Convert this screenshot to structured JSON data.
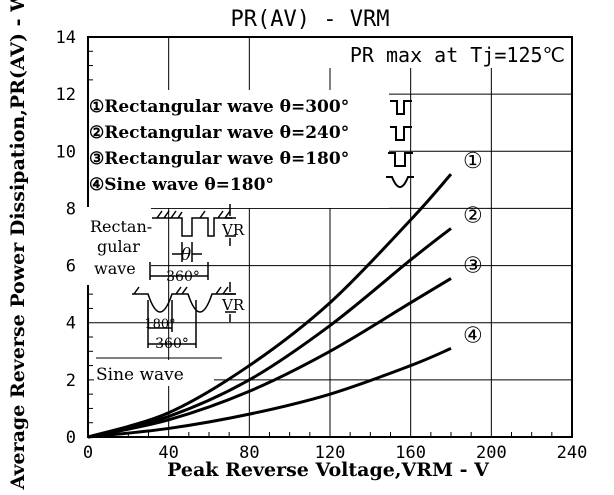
{
  "chart_data": {
    "type": "line",
    "title": "PR(AV) - VRM",
    "subtitle": "PR max at Tj=125℃",
    "xlabel": "Peak Reverse Voltage,VRM - V",
    "ylabel": "Average Reverse Power Dissipation,PR(AV) - W",
    "xlim": [
      0,
      240
    ],
    "ylim": [
      0,
      14
    ],
    "xticks": [
      0,
      40,
      80,
      120,
      160,
      200,
      240
    ],
    "yticks": [
      0,
      2,
      4,
      6,
      8,
      10,
      12,
      14
    ],
    "grid": true,
    "legend": [
      "①Rectangular wave θ=300°",
      "②Rectangular wave θ=240°",
      "③Rectangular wave θ=180°",
      "④Sine wave θ=180°"
    ],
    "series": [
      {
        "name": "①",
        "x": [
          0,
          40,
          80,
          120,
          160,
          180
        ],
        "y": [
          0,
          0.85,
          2.5,
          4.7,
          7.6,
          9.2
        ]
      },
      {
        "name": "②",
        "x": [
          0,
          40,
          80,
          120,
          160,
          180
        ],
        "y": [
          0,
          0.72,
          2.0,
          3.9,
          6.2,
          7.3
        ]
      },
      {
        "name": "③",
        "x": [
          0,
          40,
          80,
          120,
          160,
          180
        ],
        "y": [
          0,
          0.6,
          1.6,
          3.0,
          4.7,
          5.55
        ]
      },
      {
        "name": "④",
        "x": [
          0,
          40,
          80,
          120,
          160,
          180
        ],
        "y": [
          0,
          0.3,
          0.8,
          1.5,
          2.5,
          3.1
        ]
      }
    ],
    "annotations": {
      "rect_label": [
        "Rectan-",
        "gular",
        "wave"
      ],
      "theta": "θ",
      "rect_period": "360°",
      "vr": "VR",
      "sine_label": "Sine wave",
      "sine_half": "180°",
      "sine_period": "360°"
    }
  }
}
